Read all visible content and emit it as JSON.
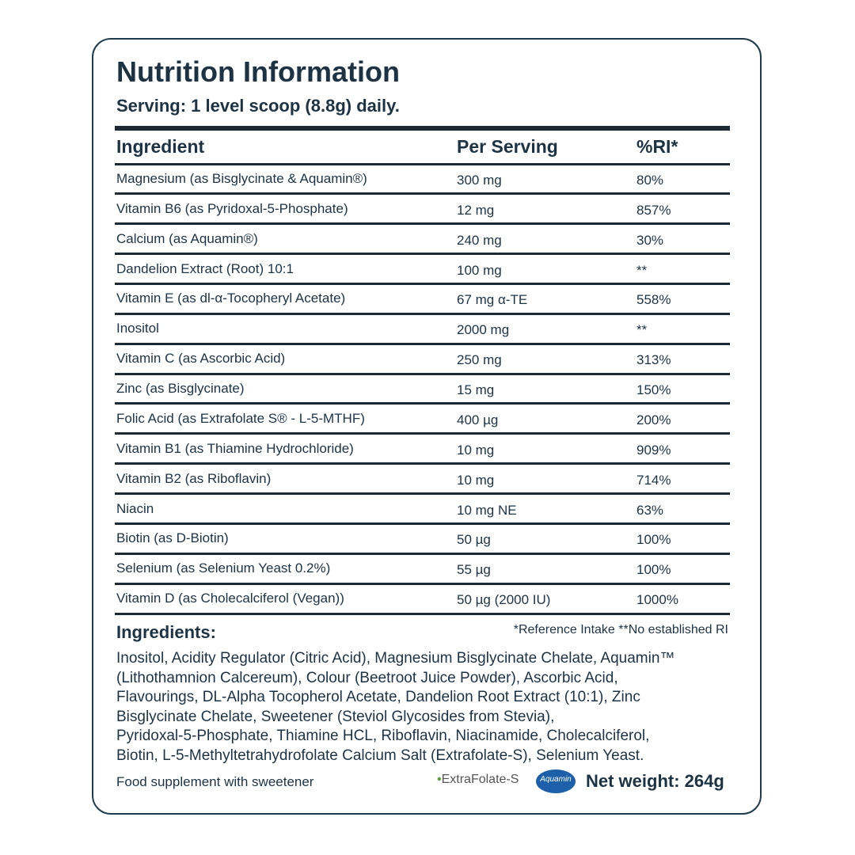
{
  "header": {
    "title": "Nutrition Information",
    "serving": "Serving: 1 level scoop (8.8g) daily."
  },
  "table": {
    "columns": [
      "Ingredient",
      "Per Serving",
      "%RI*"
    ],
    "rows": [
      [
        "Magnesium (as Bisglycinate & Aquamin®)",
        "300 mg",
        "80%"
      ],
      [
        "Vitamin B6 (as Pyridoxal-5-Phosphate)",
        "12 mg",
        "857%"
      ],
      [
        "Calcium (as Aquamin®)",
        "240 mg",
        "30%"
      ],
      [
        "Dandelion Extract (Root) 10:1",
        "100 mg",
        "**"
      ],
      [
        "Vitamin E (as dl-α-Tocopheryl Acetate)",
        "67 mg α-TE",
        "558%"
      ],
      [
        "Inositol",
        "2000 mg",
        "**"
      ],
      [
        "Vitamin C (as Ascorbic Acid)",
        "250 mg",
        "313%"
      ],
      [
        "Zinc (as Bisglycinate)",
        "15 mg",
        "150%"
      ],
      [
        "Folic Acid (as Extrafolate S® - L-5-MTHF)",
        "400 µg",
        "200%"
      ],
      [
        "Vitamin B1 (as Thiamine Hydrochloride)",
        "10 mg",
        "909%"
      ],
      [
        "Vitamin B2 (as Riboflavin)",
        "10 mg",
        "714%"
      ],
      [
        "Niacin",
        "10 mg NE",
        "63%"
      ],
      [
        "Biotin (as D-Biotin)",
        "50 µg",
        "100%"
      ],
      [
        "Selenium (as Selenium Yeast 0.2%)",
        "55 µg",
        "100%"
      ],
      [
        "Vitamin D (as Cholecalciferol (Vegan))",
        "50 µg (2000 IU)",
        "1000%"
      ]
    ]
  },
  "note": "*Reference Intake **No established RI",
  "ingredients": {
    "heading": "Ingredients:",
    "lines": [
      "Inositol, Acidity Regulator (Citric Acid), Magnesium Bisglycinate Chelate, Aquamin™",
      "(Lithothamnion Calcereum), Colour (Beetroot Juice Powder), Ascorbic Acid,",
      "Flavourings, DL-Alpha Tocopherol Acetate, Dandelion Root Extract (10:1), Zinc",
      "Bisglycinate Chelate, Sweetener (Steviol Glycosides from Stevia),",
      "Pyridoxal-5-Phosphate, Thiamine HCL, Riboflavin, Niacinamide, Cholecalciferol,",
      "Biotin, L-5-Methyltetrahydrofolate Calcium Salt (Extrafolate-S), Selenium Yeast."
    ]
  },
  "footer": {
    "text": "Food supplement with sweetener",
    "logos": [
      "ExtraFolate-S",
      "Aquamin"
    ],
    "net_weight": "Net weight: 264g"
  }
}
